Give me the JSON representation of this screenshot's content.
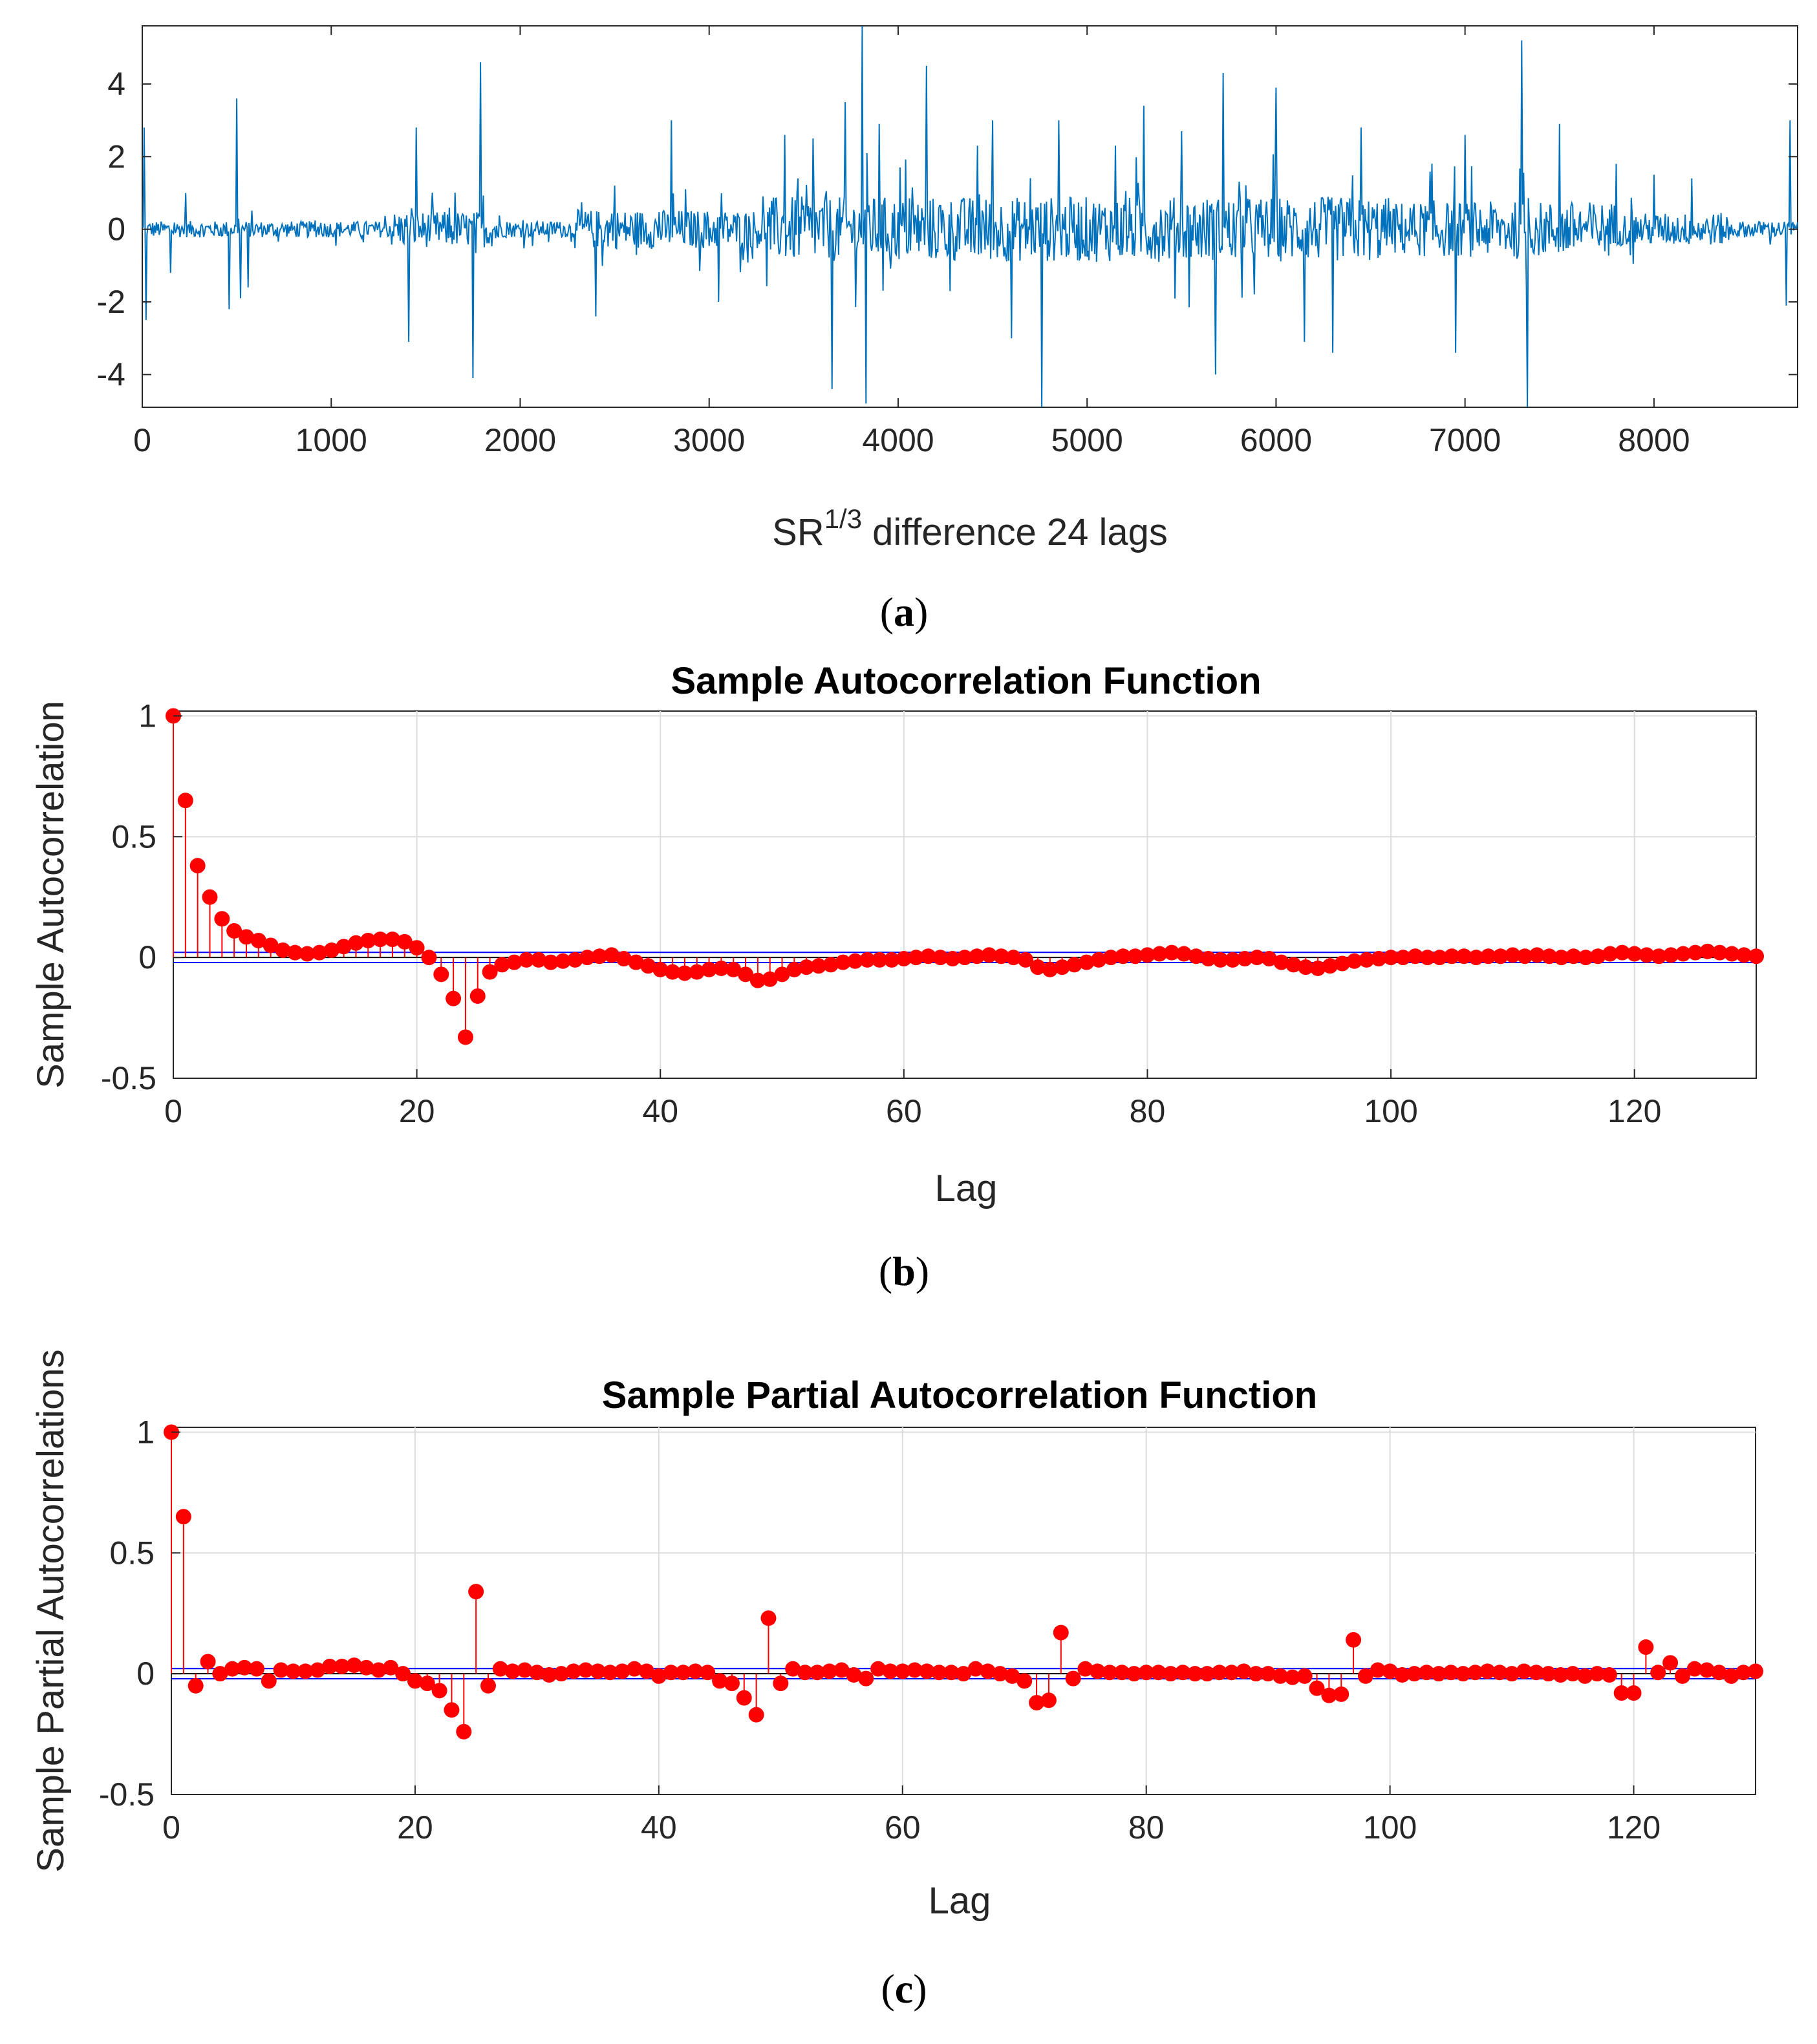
{
  "figure": {
    "captions": [
      "a",
      "b",
      "c"
    ]
  },
  "chart_data": [
    {
      "id": "a",
      "type": "line",
      "title": "",
      "xlabel_main": "SR",
      "xlabel_sup": "1/3",
      "xlabel_rest": "difference 24 lags",
      "ylabel": "",
      "xlim": [
        0,
        8760
      ],
      "ylim": [
        -4.9,
        5.6
      ],
      "xticks": [
        0,
        1000,
        2000,
        3000,
        4000,
        5000,
        6000,
        7000,
        8000
      ],
      "yticks": [
        4,
        2,
        0,
        -2,
        -4
      ],
      "grid": false,
      "color": "#0072BD",
      "spikes": [
        {
          "x": 10,
          "y": 2.8
        },
        {
          "x": 20,
          "y": -2.5
        },
        {
          "x": 150,
          "y": -1.2
        },
        {
          "x": 230,
          "y": 1.0
        },
        {
          "x": 460,
          "y": -2.2
        },
        {
          "x": 500,
          "y": 3.6
        },
        {
          "x": 520,
          "y": -1.9
        },
        {
          "x": 560,
          "y": -1.6
        },
        {
          "x": 1410,
          "y": -3.1
        },
        {
          "x": 1450,
          "y": 2.8
        },
        {
          "x": 1750,
          "y": -4.1
        },
        {
          "x": 1790,
          "y": 4.6
        },
        {
          "x": 2400,
          "y": -2.4
        },
        {
          "x": 2500,
          "y": 1.2
        },
        {
          "x": 2800,
          "y": 3.0
        },
        {
          "x": 3050,
          "y": -2.0
        },
        {
          "x": 3400,
          "y": 2.6
        },
        {
          "x": 3550,
          "y": 2.5
        },
        {
          "x": 3650,
          "y": -4.4
        },
        {
          "x": 3720,
          "y": 3.5
        },
        {
          "x": 3810,
          "y": 5.6
        },
        {
          "x": 3830,
          "y": -4.8
        },
        {
          "x": 3900,
          "y": 2.9
        },
        {
          "x": 4150,
          "y": 4.5
        },
        {
          "x": 4420,
          "y": 2.3
        },
        {
          "x": 4500,
          "y": 3.0
        },
        {
          "x": 4600,
          "y": -3.0
        },
        {
          "x": 4760,
          "y": -4.9
        },
        {
          "x": 4850,
          "y": 3.0
        },
        {
          "x": 5150,
          "y": 2.3
        },
        {
          "x": 5300,
          "y": 3.4
        },
        {
          "x": 5500,
          "y": 2.7
        },
        {
          "x": 5680,
          "y": -4.0
        },
        {
          "x": 5720,
          "y": 4.3
        },
        {
          "x": 6000,
          "y": 3.9
        },
        {
          "x": 6150,
          "y": -3.1
        },
        {
          "x": 6300,
          "y": -3.4
        },
        {
          "x": 6450,
          "y": 2.8
        },
        {
          "x": 6950,
          "y": -3.4
        },
        {
          "x": 7000,
          "y": 2.6
        },
        {
          "x": 7300,
          "y": 5.2
        },
        {
          "x": 7330,
          "y": -4.9
        },
        {
          "x": 7500,
          "y": 2.9
        },
        {
          "x": 7800,
          "y": 1.8
        },
        {
          "x": 8000,
          "y": 1.5
        },
        {
          "x": 8200,
          "y": 1.4
        },
        {
          "x": 8700,
          "y": -2.1
        },
        {
          "x": 8720,
          "y": 3.0
        }
      ]
    },
    {
      "id": "b",
      "type": "stem",
      "title": "Sample Autocorrelation Function",
      "xlabel": "Lag",
      "ylabel": "Sample Autocorrelation",
      "xlim": [
        0,
        130
      ],
      "ylim": [
        -0.5,
        1.02
      ],
      "xticks": [
        0,
        20,
        40,
        60,
        80,
        100,
        120
      ],
      "yticks": [
        1,
        0.5,
        0,
        -0.5
      ],
      "ytick_labels": [
        "1",
        "0.5",
        "0",
        "-0.5"
      ],
      "grid": true,
      "conf_bound": 0.021,
      "values": [
        1,
        0.65,
        0.38,
        0.25,
        0.16,
        0.11,
        0.085,
        0.07,
        0.05,
        0.03,
        0.02,
        0.015,
        0.02,
        0.03,
        0.045,
        0.06,
        0.07,
        0.075,
        0.075,
        0.065,
        0.04,
        0.0,
        -0.07,
        -0.17,
        -0.33,
        -0.16,
        -0.06,
        -0.03,
        -0.02,
        -0.01,
        -0.01,
        -0.02,
        -0.015,
        -0.01,
        0.0,
        0.005,
        0.01,
        -0.005,
        -0.02,
        -0.035,
        -0.05,
        -0.06,
        -0.065,
        -0.06,
        -0.05,
        -0.045,
        -0.05,
        -0.07,
        -0.095,
        -0.09,
        -0.07,
        -0.05,
        -0.04,
        -0.035,
        -0.03,
        -0.02,
        -0.015,
        -0.01,
        -0.01,
        -0.01,
        -0.005,
        0.0,
        0.005,
        0.0,
        -0.005,
        0.0,
        0.005,
        0.01,
        0.005,
        0.0,
        -0.01,
        -0.04,
        -0.05,
        -0.04,
        -0.03,
        -0.02,
        -0.01,
        0.0,
        0.005,
        0.005,
        0.01,
        0.015,
        0.02,
        0.015,
        0.005,
        -0.005,
        -0.01,
        -0.01,
        -0.005,
        0.0,
        -0.005,
        -0.02,
        -0.03,
        -0.04,
        -0.045,
        -0.035,
        -0.025,
        -0.015,
        -0.01,
        -0.005,
        0.0,
        0.0,
        0.005,
        0.0,
        0.0,
        0.005,
        0.005,
        0.0,
        0.005,
        0.005,
        0.01,
        0.005,
        0.01,
        0.005,
        0.0,
        0.005,
        0.0,
        0.005,
        0.015,
        0.02,
        0.015,
        0.01,
        0.005,
        0.01,
        0.015,
        0.02,
        0.025,
        0.02,
        0.015,
        0.01,
        0.005
      ]
    },
    {
      "id": "c",
      "type": "stem",
      "title": "Sample Partial Autocorrelation Function",
      "xlabel": "Lag",
      "ylabel": "Sample Partial Autocorrelations",
      "xlim": [
        0,
        130
      ],
      "ylim": [
        -0.5,
        1.02
      ],
      "xticks": [
        0,
        20,
        40,
        60,
        80,
        100,
        120
      ],
      "yticks": [
        1,
        0.5,
        0,
        -0.5
      ],
      "ytick_labels": [
        "1",
        "0.5",
        "0",
        "-0.5"
      ],
      "grid": true,
      "conf_bound": 0.021,
      "values": [
        1,
        0.65,
        -0.05,
        0.05,
        0.0,
        0.02,
        0.025,
        0.02,
        -0.03,
        0.015,
        0.01,
        0.01,
        0.015,
        0.03,
        0.03,
        0.035,
        0.025,
        0.015,
        0.025,
        0.0,
        -0.03,
        -0.04,
        -0.07,
        -0.15,
        -0.24,
        0.34,
        -0.05,
        0.02,
        0.01,
        0.015,
        0.005,
        -0.005,
        0.0,
        0.01,
        0.015,
        0.01,
        0.005,
        0.01,
        0.02,
        0.01,
        -0.01,
        0.005,
        0.005,
        0.01,
        0.005,
        -0.03,
        -0.04,
        -0.1,
        -0.17,
        0.23,
        -0.04,
        0.02,
        0.005,
        0.005,
        0.01,
        0.015,
        -0.005,
        -0.02,
        0.02,
        0.01,
        0.01,
        0.015,
        0.01,
        0.005,
        0.005,
        0.0,
        0.02,
        0.01,
        0.0,
        -0.01,
        -0.03,
        -0.12,
        -0.11,
        0.17,
        -0.02,
        0.02,
        0.01,
        0.005,
        0.005,
        0.0,
        0.005,
        0.005,
        0.0,
        0.005,
        0.0,
        0.0,
        0.005,
        0.005,
        0.01,
        0.0,
        0.0,
        -0.01,
        -0.015,
        -0.01,
        -0.06,
        -0.09,
        -0.085,
        0.14,
        -0.01,
        0.015,
        0.01,
        -0.005,
        0.0,
        0.005,
        0.0,
        0.005,
        0.0,
        0.005,
        0.01,
        0.005,
        0.0,
        0.01,
        0.005,
        0.0,
        -0.005,
        0.0,
        -0.01,
        0.0,
        -0.005,
        -0.08,
        -0.08,
        0.11,
        0.005,
        0.045,
        -0.01,
        0.02,
        0.015,
        0.005,
        -0.01,
        0.005,
        0.01
      ]
    }
  ]
}
